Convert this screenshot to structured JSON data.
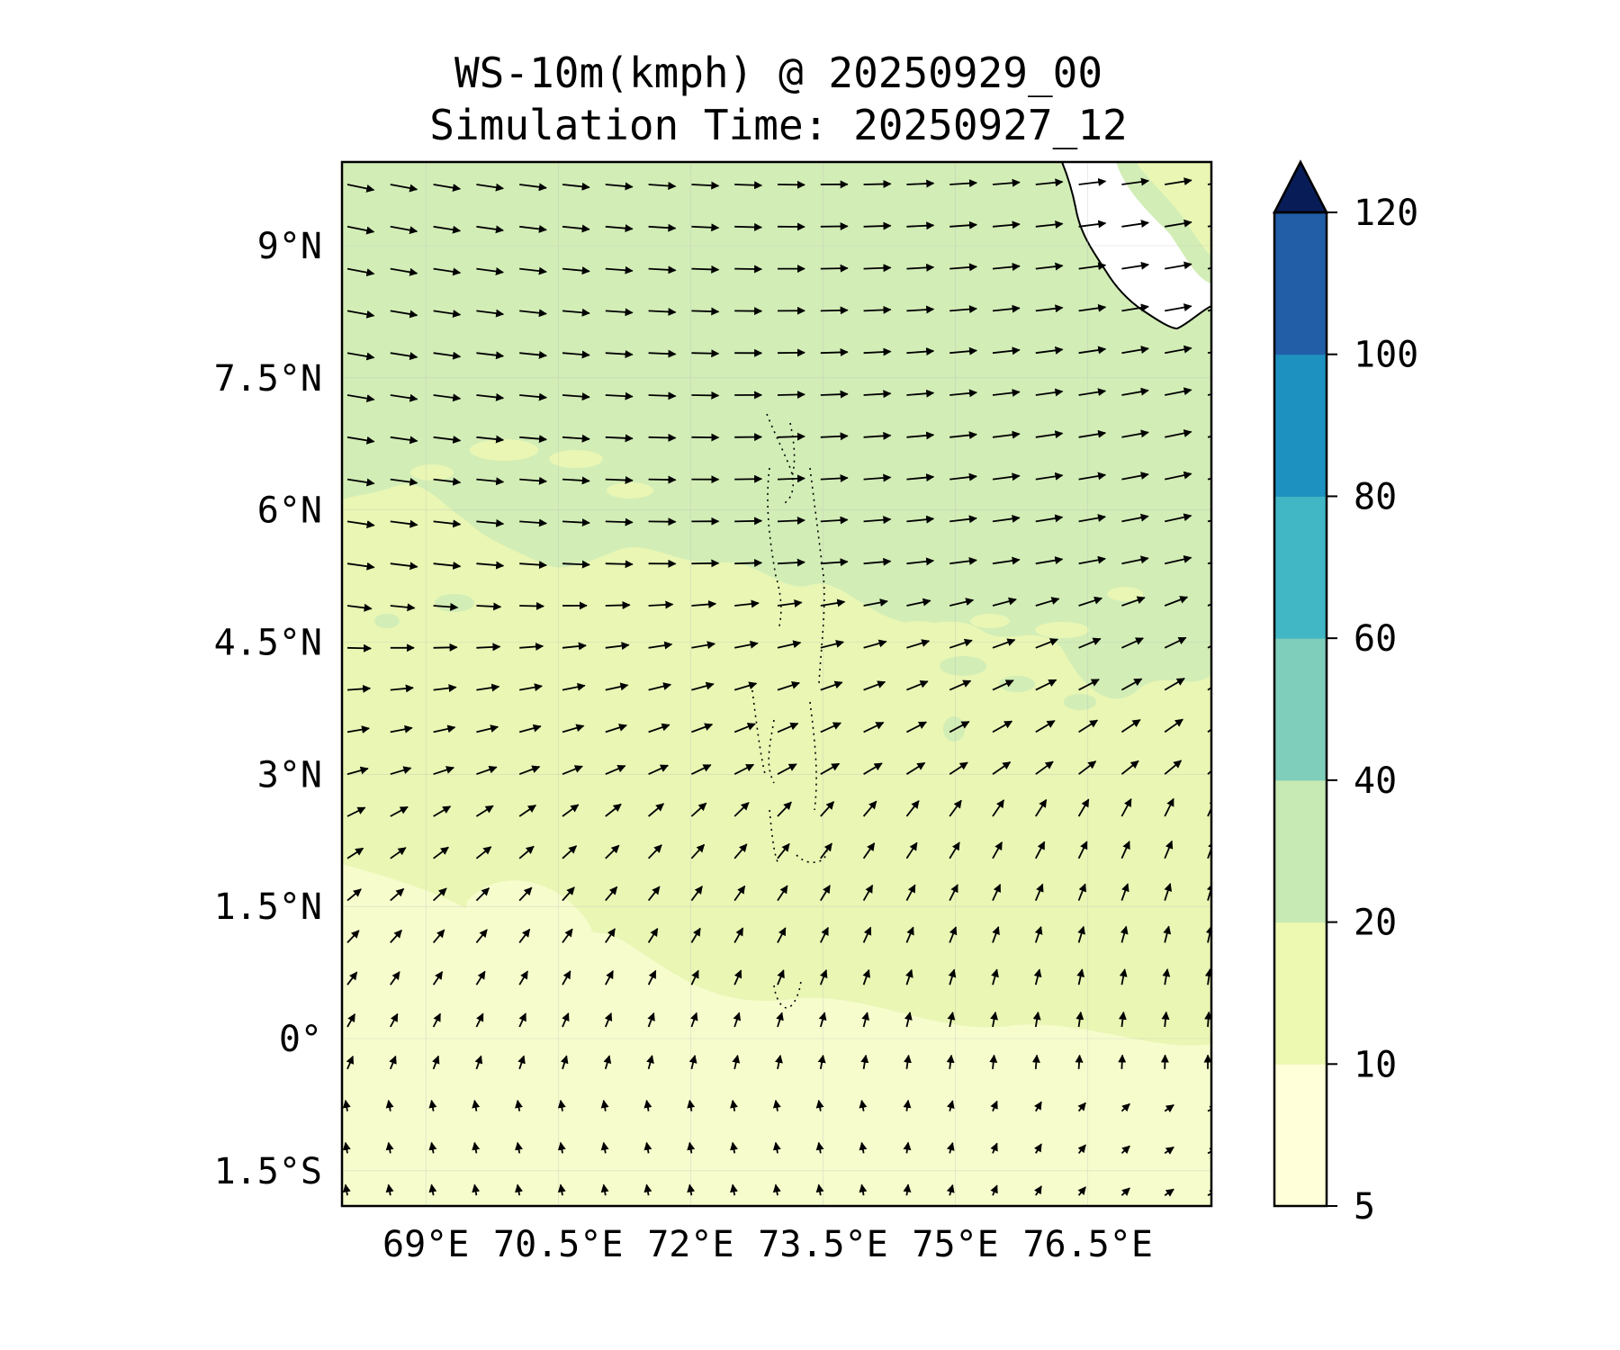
{
  "title_line1": "WS-10m(kmph) @ 20250929_00",
  "title_line2": "Simulation Time: 20250927_12",
  "lat_ticks": [
    {
      "value": 9,
      "label": "9°N"
    },
    {
      "value": 7.5,
      "label": "7.5°N"
    },
    {
      "value": 6,
      "label": "6°N"
    },
    {
      "value": 4.5,
      "label": "4.5°N"
    },
    {
      "value": 3,
      "label": "3°N"
    },
    {
      "value": 1.5,
      "label": "1.5°N"
    },
    {
      "value": 0,
      "label": "0°"
    },
    {
      "value": -1.5,
      "label": "1.5°S"
    }
  ],
  "lon_ticks": [
    {
      "value": 69,
      "label": "69°E"
    },
    {
      "value": 70.5,
      "label": "70.5°E"
    },
    {
      "value": 72,
      "label": "72°E"
    },
    {
      "value": 73.5,
      "label": "73.5°E"
    },
    {
      "value": 75,
      "label": "75°E"
    },
    {
      "value": 76.5,
      "label": "76.5°E"
    }
  ],
  "extent": {
    "lon_min": 68.05,
    "lon_max": 77.9,
    "lat_min": -1.9,
    "lat_max": 9.95
  },
  "colorbar": {
    "levels": [
      5,
      10,
      20,
      40,
      60,
      80,
      100,
      120
    ],
    "labels": [
      "5",
      "10",
      "20",
      "40",
      "60",
      "80",
      "100",
      "120"
    ],
    "colors": [
      "#ffffd9",
      "#edf8b1",
      "#c7e9b4",
      "#7fcdbb",
      "#41b6c4",
      "#1d91c0",
      "#225ea8",
      "#0c2c84"
    ],
    "extend_color": "#081d58",
    "extend": "max"
  },
  "field_colors": {
    "low": "#f4fbc8",
    "mid": "#e9f6b4",
    "high": "#d2edb6",
    "land": "#ffffff"
  }
}
